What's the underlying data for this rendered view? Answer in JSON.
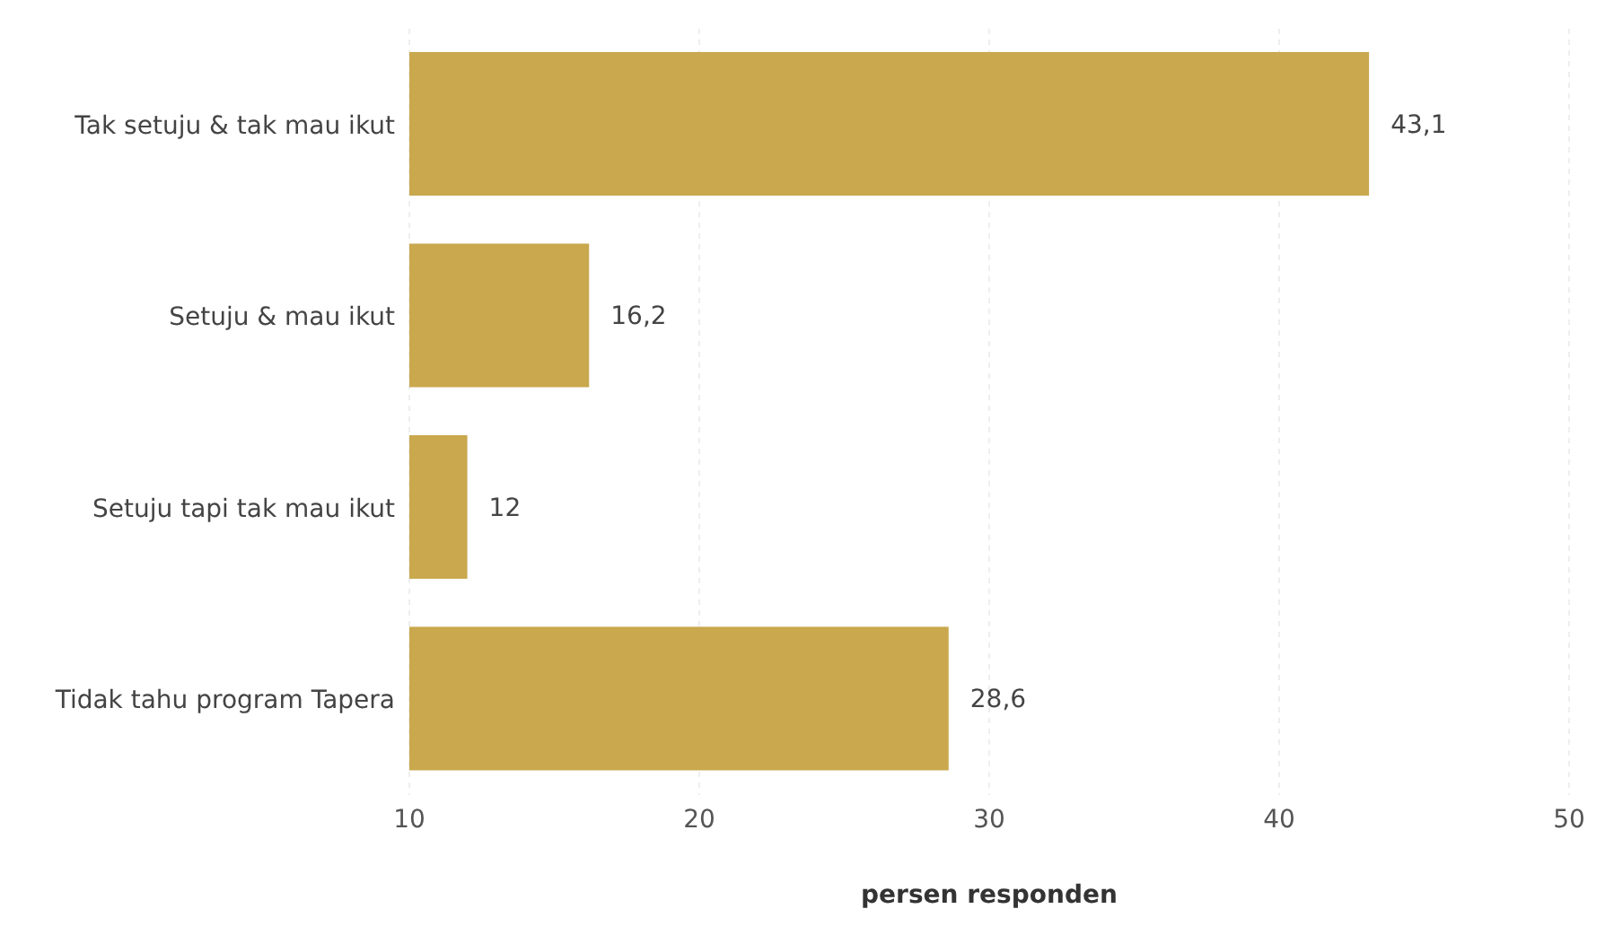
{
  "chart_data": {
    "type": "bar",
    "orientation": "horizontal",
    "xlabel": "persen responden",
    "categories": [
      "Tak setuju & tak mau ikut",
      "Setuju & mau ikut",
      "Setuju tapi tak mau ikut",
      "Tidak tahu program Tapera"
    ],
    "values": [
      43.1,
      16.2,
      12,
      28.6
    ],
    "value_labels": [
      "43,1",
      "16,2",
      "12",
      "28,6"
    ],
    "color": "#c9a84e",
    "xlim": [
      10,
      50
    ],
    "xticks": [
      10,
      20,
      30,
      40,
      50
    ],
    "grid": "x"
  }
}
